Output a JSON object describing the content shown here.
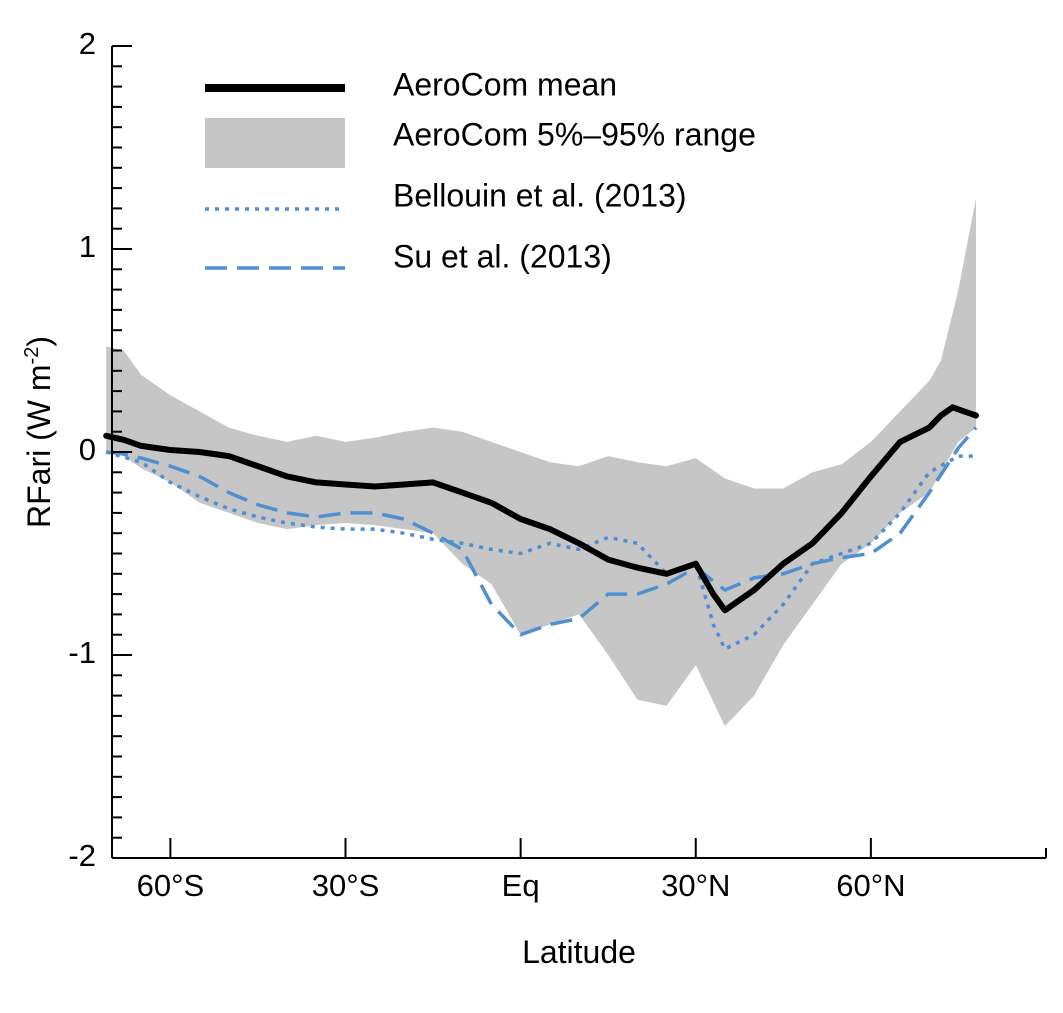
{
  "chart_data": {
    "type": "line",
    "title": "",
    "xlabel": "Latitude",
    "ylabel": "RFari (W m",
    "ylabel_superscript": "-2",
    "ylabel_close": ")",
    "xlim": [
      -70,
      90
    ],
    "ylim": [
      -2,
      2
    ],
    "x_ticks": [
      {
        "value": -60,
        "label": "60°S"
      },
      {
        "value": -30,
        "label": "30°S"
      },
      {
        "value": 0,
        "label": "Eq"
      },
      {
        "value": 30,
        "label": "30°N"
      },
      {
        "value": 60,
        "label": "60°N"
      }
    ],
    "y_ticks": [
      {
        "value": 2,
        "label": "2"
      },
      {
        "value": 1,
        "label": "1"
      },
      {
        "value": 0,
        "label": "0"
      },
      {
        "value": -1,
        "label": "-1"
      },
      {
        "value": -2,
        "label": "-2"
      }
    ],
    "y_minor_step": 0.1,
    "grid": false,
    "legend_position": "top-left",
    "legend": [
      {
        "key": "mean",
        "label": "AeroCom mean"
      },
      {
        "key": "range",
        "label": "AeroCom 5%–95% range"
      },
      {
        "key": "bellouin",
        "label": "Bellouin et al. (2013)"
      },
      {
        "key": "su",
        "label": "Su et al. (2013)"
      }
    ],
    "colors": {
      "mean": "#000000",
      "range": "#c6c6c6",
      "bellouin": "#4f8fcf",
      "su": "#4f8fcf"
    },
    "band": {
      "x": [
        -71,
        -68,
        -65,
        -60,
        -55,
        -50,
        -45,
        -40,
        -35,
        -30,
        -25,
        -20,
        -15,
        -10,
        -5,
        0,
        5,
        10,
        15,
        20,
        25,
        30,
        35,
        40,
        45,
        50,
        55,
        60,
        65,
        70,
        72,
        75,
        78
      ],
      "upper": [
        0.52,
        0.5,
        0.38,
        0.28,
        0.2,
        0.12,
        0.08,
        0.05,
        0.08,
        0.05,
        0.07,
        0.1,
        0.12,
        0.1,
        0.05,
        0.0,
        -0.05,
        -0.07,
        -0.02,
        -0.05,
        -0.07,
        -0.03,
        -0.13,
        -0.18,
        -0.18,
        -0.1,
        -0.06,
        0.05,
        0.2,
        0.35,
        0.45,
        0.8,
        1.25
      ],
      "lower": [
        0.0,
        -0.02,
        -0.08,
        -0.15,
        -0.25,
        -0.3,
        -0.35,
        -0.38,
        -0.36,
        -0.35,
        -0.36,
        -0.38,
        -0.4,
        -0.55,
        -0.65,
        -0.9,
        -0.85,
        -0.8,
        -1.0,
        -1.22,
        -1.25,
        -1.05,
        -1.35,
        -1.2,
        -0.95,
        -0.75,
        -0.55,
        -0.45,
        -0.3,
        -0.2,
        -0.1,
        0.05,
        0.12
      ]
    },
    "series": [
      {
        "key": "mean",
        "name": "AeroCom mean",
        "x": [
          -71,
          -68,
          -65,
          -60,
          -55,
          -50,
          -45,
          -40,
          -35,
          -30,
          -25,
          -20,
          -15,
          -10,
          -5,
          0,
          5,
          10,
          15,
          20,
          25,
          30,
          33,
          35,
          40,
          45,
          50,
          55,
          60,
          65,
          70,
          72,
          74,
          76,
          78
        ],
        "values": [
          0.08,
          0.06,
          0.03,
          0.01,
          0.0,
          -0.02,
          -0.07,
          -0.12,
          -0.15,
          -0.16,
          -0.17,
          -0.16,
          -0.15,
          -0.2,
          -0.25,
          -0.33,
          -0.38,
          -0.45,
          -0.53,
          -0.57,
          -0.6,
          -0.55,
          -0.7,
          -0.78,
          -0.68,
          -0.55,
          -0.45,
          -0.3,
          -0.12,
          0.05,
          0.12,
          0.18,
          0.22,
          0.2,
          0.18
        ]
      },
      {
        "key": "bellouin",
        "name": "Bellouin et al. (2013)",
        "x": [
          -71,
          -65,
          -60,
          -55,
          -50,
          -45,
          -40,
          -35,
          -30,
          -25,
          -20,
          -15,
          -10,
          -5,
          0,
          5,
          10,
          15,
          20,
          25,
          30,
          33,
          35,
          40,
          45,
          50,
          55,
          60,
          65,
          70,
          75,
          78
        ],
        "values": [
          0.0,
          -0.05,
          -0.15,
          -0.22,
          -0.28,
          -0.32,
          -0.35,
          -0.37,
          -0.38,
          -0.38,
          -0.4,
          -0.43,
          -0.45,
          -0.48,
          -0.5,
          -0.45,
          -0.48,
          -0.42,
          -0.45,
          -0.6,
          -0.55,
          -0.85,
          -0.97,
          -0.9,
          -0.75,
          -0.55,
          -0.5,
          -0.45,
          -0.3,
          -0.1,
          -0.02,
          -0.02
        ]
      },
      {
        "key": "su",
        "name": "Su et al. (2013)",
        "x": [
          -71,
          -68,
          -65,
          -60,
          -55,
          -50,
          -45,
          -40,
          -35,
          -30,
          -25,
          -20,
          -15,
          -10,
          -5,
          0,
          5,
          10,
          15,
          20,
          25,
          30,
          35,
          40,
          45,
          50,
          55,
          60,
          65,
          70,
          75,
          78
        ],
        "values": [
          0.0,
          -0.01,
          -0.03,
          -0.07,
          -0.12,
          -0.2,
          -0.26,
          -0.3,
          -0.32,
          -0.3,
          -0.3,
          -0.33,
          -0.4,
          -0.48,
          -0.75,
          -0.9,
          -0.85,
          -0.82,
          -0.7,
          -0.7,
          -0.65,
          -0.57,
          -0.68,
          -0.62,
          -0.6,
          -0.55,
          -0.52,
          -0.5,
          -0.4,
          -0.2,
          0.02,
          0.12
        ]
      }
    ]
  }
}
